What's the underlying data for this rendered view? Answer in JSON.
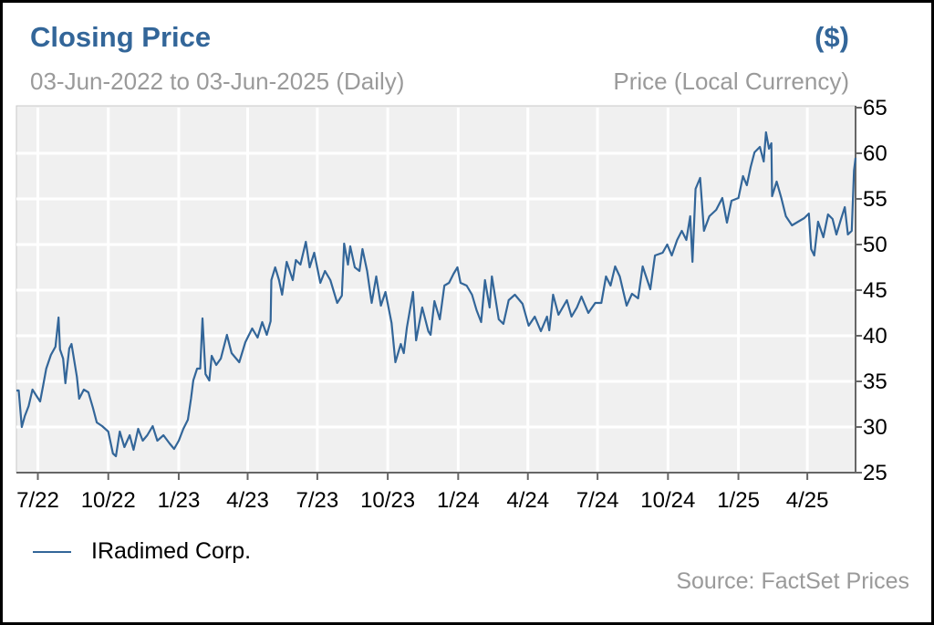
{
  "header": {
    "title": "Closing Price",
    "unit": "($)",
    "subtitle": "03-Jun-2022 to 03-Jun-2025 (Daily)",
    "ylabel": "Price (Local Currency)"
  },
  "legend": {
    "label": "IRadimed Corp."
  },
  "source": "Source: FactSet Prices",
  "colors": {
    "series": "#336699",
    "plot_bg": "#f0f0f0",
    "grid": "#ffffff",
    "title": "#336699",
    "muted": "#9a9a9a"
  },
  "chart_data": {
    "type": "line",
    "title": "Closing Price",
    "subtitle": "03-Jun-2022 to 03-Jun-2025 (Daily)",
    "ylabel": "Price (Local Currency)",
    "xlim": [
      "2022-06-03",
      "2025-06-03"
    ],
    "ylim": [
      25,
      65
    ],
    "grid": true,
    "y_axis_side": "right",
    "legend_placement": "bottom-left",
    "x_ticks": [
      {
        "date": "2022-07-01",
        "label": "7/22"
      },
      {
        "date": "2022-10-01",
        "label": "10/22"
      },
      {
        "date": "2023-01-01",
        "label": "1/23"
      },
      {
        "date": "2023-04-01",
        "label": "4/23"
      },
      {
        "date": "2023-07-01",
        "label": "7/23"
      },
      {
        "date": "2023-10-01",
        "label": "10/23"
      },
      {
        "date": "2024-01-01",
        "label": "1/24"
      },
      {
        "date": "2024-04-01",
        "label": "4/24"
      },
      {
        "date": "2024-07-01",
        "label": "7/24"
      },
      {
        "date": "2024-10-01",
        "label": "10/24"
      },
      {
        "date": "2025-01-01",
        "label": "1/25"
      },
      {
        "date": "2025-04-01",
        "label": "4/25"
      }
    ],
    "y_ticks": [
      "25",
      "30",
      "35",
      "40",
      "45",
      "50",
      "55",
      "60",
      "65"
    ],
    "series": [
      {
        "name": "IRadimed Corp.",
        "points": [
          [
            "2022-06-03",
            34.0
          ],
          [
            "2022-06-06",
            34.0
          ],
          [
            "2022-06-10",
            30.0
          ],
          [
            "2022-06-14",
            31.2
          ],
          [
            "2022-06-19",
            32.3
          ],
          [
            "2022-06-24",
            34.1
          ],
          [
            "2022-06-30",
            33.3
          ],
          [
            "2022-07-04",
            32.8
          ],
          [
            "2022-07-08",
            34.6
          ],
          [
            "2022-07-12",
            36.4
          ],
          [
            "2022-07-18",
            37.9
          ],
          [
            "2022-07-24",
            38.8
          ],
          [
            "2022-07-28",
            42.0
          ],
          [
            "2022-07-30",
            38.5
          ],
          [
            "2022-08-03",
            37.5
          ],
          [
            "2022-08-06",
            34.8
          ],
          [
            "2022-08-11",
            38.6
          ],
          [
            "2022-08-14",
            39.1
          ],
          [
            "2022-08-21",
            35.5
          ],
          [
            "2022-08-24",
            33.1
          ],
          [
            "2022-08-30",
            34.1
          ],
          [
            "2022-09-05",
            33.8
          ],
          [
            "2022-09-11",
            32.1
          ],
          [
            "2022-09-16",
            30.5
          ],
          [
            "2022-09-23",
            30.1
          ],
          [
            "2022-10-01",
            29.5
          ],
          [
            "2022-10-07",
            27.1
          ],
          [
            "2022-10-11",
            26.8
          ],
          [
            "2022-10-16",
            29.5
          ],
          [
            "2022-10-22",
            27.8
          ],
          [
            "2022-10-29",
            29.1
          ],
          [
            "2022-11-03",
            27.5
          ],
          [
            "2022-11-09",
            29.8
          ],
          [
            "2022-11-15",
            28.5
          ],
          [
            "2022-11-21",
            29.1
          ],
          [
            "2022-11-28",
            30.1
          ],
          [
            "2022-12-04",
            28.5
          ],
          [
            "2022-12-12",
            29.1
          ],
          [
            "2022-12-20",
            28.2
          ],
          [
            "2022-12-26",
            27.6
          ],
          [
            "2023-01-01",
            28.5
          ],
          [
            "2023-01-07",
            29.8
          ],
          [
            "2023-01-13",
            30.8
          ],
          [
            "2023-01-17",
            33.1
          ],
          [
            "2023-01-20",
            35.1
          ],
          [
            "2023-01-25",
            36.4
          ],
          [
            "2023-01-29",
            36.4
          ],
          [
            "2023-02-01",
            41.9
          ],
          [
            "2023-02-05",
            35.8
          ],
          [
            "2023-02-10",
            35.1
          ],
          [
            "2023-02-13",
            37.8
          ],
          [
            "2023-02-19",
            36.8
          ],
          [
            "2023-02-25",
            37.5
          ],
          [
            "2023-03-05",
            40.1
          ],
          [
            "2023-03-11",
            38.1
          ],
          [
            "2023-03-21",
            37.1
          ],
          [
            "2023-03-29",
            39.3
          ],
          [
            "2023-04-07",
            40.8
          ],
          [
            "2023-04-14",
            39.8
          ],
          [
            "2023-04-20",
            41.5
          ],
          [
            "2023-04-26",
            40.1
          ],
          [
            "2023-05-01",
            41.6
          ],
          [
            "2023-05-02",
            46.1
          ],
          [
            "2023-05-07",
            47.5
          ],
          [
            "2023-05-12",
            46.1
          ],
          [
            "2023-05-16",
            44.5
          ],
          [
            "2023-05-22",
            48.1
          ],
          [
            "2023-05-30",
            46.1
          ],
          [
            "2023-06-03",
            48.3
          ],
          [
            "2023-06-09",
            47.8
          ],
          [
            "2023-06-16",
            50.3
          ],
          [
            "2023-06-21",
            47.5
          ],
          [
            "2023-06-27",
            49.1
          ],
          [
            "2023-07-05",
            45.8
          ],
          [
            "2023-07-11",
            47.1
          ],
          [
            "2023-07-18",
            46.1
          ],
          [
            "2023-07-27",
            43.6
          ],
          [
            "2023-08-02",
            44.4
          ],
          [
            "2023-08-05",
            50.1
          ],
          [
            "2023-08-10",
            47.8
          ],
          [
            "2023-08-13",
            49.8
          ],
          [
            "2023-08-19",
            47.5
          ],
          [
            "2023-08-25",
            47.1
          ],
          [
            "2023-08-29",
            49.5
          ],
          [
            "2023-09-04",
            47.1
          ],
          [
            "2023-09-10",
            43.6
          ],
          [
            "2023-09-16",
            46.5
          ],
          [
            "2023-09-22",
            43.3
          ],
          [
            "2023-09-28",
            44.8
          ],
          [
            "2023-10-06",
            41.4
          ],
          [
            "2023-10-11",
            37.1
          ],
          [
            "2023-10-18",
            39.1
          ],
          [
            "2023-10-22",
            38.1
          ],
          [
            "2023-10-26",
            40.9
          ],
          [
            "2023-11-03",
            44.8
          ],
          [
            "2023-11-07",
            39.5
          ],
          [
            "2023-11-15",
            43.1
          ],
          [
            "2023-11-23",
            40.5
          ],
          [
            "2023-11-26",
            40.1
          ],
          [
            "2023-12-01",
            43.8
          ],
          [
            "2023-12-08",
            41.8
          ],
          [
            "2023-12-14",
            45.5
          ],
          [
            "2023-12-20",
            45.8
          ],
          [
            "2023-12-26",
            46.8
          ],
          [
            "2023-12-31",
            47.5
          ],
          [
            "2024-01-04",
            45.8
          ],
          [
            "2024-01-12",
            45.5
          ],
          [
            "2024-01-19",
            44.5
          ],
          [
            "2024-01-25",
            42.8
          ],
          [
            "2024-01-31",
            41.5
          ],
          [
            "2024-02-05",
            46.1
          ],
          [
            "2024-02-11",
            43.1
          ],
          [
            "2024-02-14",
            46.5
          ],
          [
            "2024-02-23",
            41.8
          ],
          [
            "2024-02-29",
            41.3
          ],
          [
            "2024-03-07",
            43.9
          ],
          [
            "2024-03-15",
            44.5
          ],
          [
            "2024-03-25",
            43.5
          ],
          [
            "2024-04-02",
            41.1
          ],
          [
            "2024-04-10",
            42.1
          ],
          [
            "2024-04-18",
            40.5
          ],
          [
            "2024-04-26",
            42.1
          ],
          [
            "2024-04-29",
            40.6
          ],
          [
            "2024-05-04",
            44.5
          ],
          [
            "2024-05-11",
            42.3
          ],
          [
            "2024-05-22",
            43.9
          ],
          [
            "2024-05-28",
            42.1
          ],
          [
            "2024-06-04",
            43.1
          ],
          [
            "2024-06-10",
            44.3
          ],
          [
            "2024-06-19",
            42.5
          ],
          [
            "2024-06-28",
            43.6
          ],
          [
            "2024-07-06",
            43.6
          ],
          [
            "2024-07-12",
            46.5
          ],
          [
            "2024-07-18",
            45.5
          ],
          [
            "2024-07-24",
            47.6
          ],
          [
            "2024-07-30",
            46.5
          ],
          [
            "2024-08-08",
            43.3
          ],
          [
            "2024-08-15",
            44.6
          ],
          [
            "2024-08-23",
            44.1
          ],
          [
            "2024-08-29",
            47.6
          ],
          [
            "2024-09-08",
            45.1
          ],
          [
            "2024-09-14",
            48.8
          ],
          [
            "2024-09-24",
            49.1
          ],
          [
            "2024-09-30",
            50.0
          ],
          [
            "2024-10-06",
            48.8
          ],
          [
            "2024-10-13",
            50.5
          ],
          [
            "2024-10-19",
            51.5
          ],
          [
            "2024-10-25",
            50.5
          ],
          [
            "2024-10-30",
            53.1
          ],
          [
            "2024-11-02",
            48.1
          ],
          [
            "2024-11-06",
            56.1
          ],
          [
            "2024-11-12",
            57.3
          ],
          [
            "2024-11-17",
            51.5
          ],
          [
            "2024-11-24",
            53.1
          ],
          [
            "2024-12-03",
            53.8
          ],
          [
            "2024-12-11",
            55.1
          ],
          [
            "2024-12-17",
            52.4
          ],
          [
            "2024-12-23",
            54.8
          ],
          [
            "2025-01-01",
            55.1
          ],
          [
            "2025-01-07",
            57.5
          ],
          [
            "2025-01-12",
            56.5
          ],
          [
            "2025-01-17",
            58.5
          ],
          [
            "2025-01-22",
            60.1
          ],
          [
            "2025-01-29",
            60.7
          ],
          [
            "2025-02-03",
            59.1
          ],
          [
            "2025-02-06",
            62.3
          ],
          [
            "2025-02-10",
            60.5
          ],
          [
            "2025-02-13",
            61.1
          ],
          [
            "2025-02-14",
            55.3
          ],
          [
            "2025-02-20",
            56.9
          ],
          [
            "2025-02-26",
            55.1
          ],
          [
            "2025-03-04",
            53.1
          ],
          [
            "2025-03-12",
            52.1
          ],
          [
            "2025-03-20",
            52.5
          ],
          [
            "2025-03-28",
            52.9
          ],
          [
            "2025-04-03",
            53.4
          ],
          [
            "2025-04-06",
            49.5
          ],
          [
            "2025-04-10",
            48.8
          ],
          [
            "2025-04-15",
            52.5
          ],
          [
            "2025-04-22",
            50.8
          ],
          [
            "2025-04-28",
            53.3
          ],
          [
            "2025-05-04",
            52.8
          ],
          [
            "2025-05-09",
            51.1
          ],
          [
            "2025-05-15",
            52.8
          ],
          [
            "2025-05-20",
            54.1
          ],
          [
            "2025-05-24",
            51.1
          ],
          [
            "2025-05-29",
            51.5
          ],
          [
            "2025-06-01",
            58.1
          ],
          [
            "2025-06-03",
            59.5
          ]
        ]
      }
    ]
  }
}
